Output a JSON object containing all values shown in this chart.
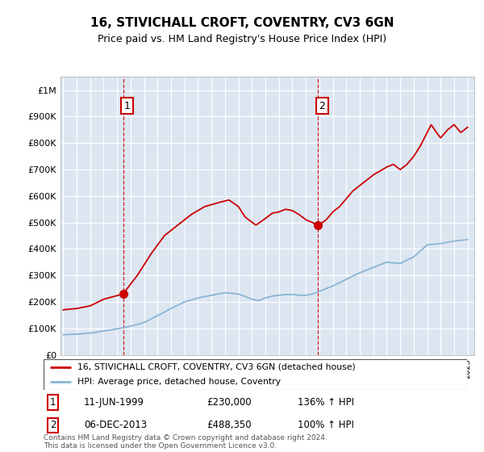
{
  "title": "16, STIVICHALL CROFT, COVENTRY, CV3 6GN",
  "subtitle": "Price paid vs. HM Land Registry's House Price Index (HPI)",
  "ylim": [
    0,
    1050000
  ],
  "xlim_start": 1994.8,
  "xlim_end": 2025.5,
  "background_color": "#dce6f1",
  "grid_color": "#ffffff",
  "sale1_date": 1999.44,
  "sale1_price": 230000,
  "sale2_date": 2013.92,
  "sale2_price": 488350,
  "red_line_color": "#cc0000",
  "blue_line_color": "#8ab4d4",
  "legend_label1": "16, STIVICHALL CROFT, COVENTRY, CV3 6GN (detached house)",
  "legend_label2": "HPI: Average price, detached house, Coventry",
  "sale1_label": "1",
  "sale1_text": "11-JUN-1999",
  "sale1_amount": "£230,000",
  "sale1_hpi": "136% ↑ HPI",
  "sale2_label": "2",
  "sale2_text": "06-DEC-2013",
  "sale2_amount": "£488,350",
  "sale2_hpi": "100% ↑ HPI",
  "footer": "Contains HM Land Registry data © Crown copyright and database right 2024.\nThis data is licensed under the Open Government Licence v3.0.",
  "yticks": [
    0,
    100000,
    200000,
    300000,
    400000,
    500000,
    600000,
    700000,
    800000,
    900000,
    1000000
  ],
  "ytick_labels": [
    "£0",
    "£100K",
    "£200K",
    "£300K",
    "£400K",
    "£500K",
    "£600K",
    "£700K",
    "£800K",
    "£900K",
    "£1M"
  ],
  "red_key_x": [
    1995.0,
    1996.0,
    1997.0,
    1998.0,
    1999.44,
    2000.5,
    2001.5,
    2002.5,
    2003.5,
    2004.5,
    2005.5,
    2006.5,
    2007.3,
    2008.0,
    2008.5,
    2009.3,
    2010.0,
    2010.5,
    2011.0,
    2011.5,
    2012.0,
    2012.5,
    2013.0,
    2013.5,
    2013.92,
    2014.5,
    2015.0,
    2015.5,
    2016.0,
    2016.5,
    2017.0,
    2017.5,
    2018.0,
    2018.5,
    2019.0,
    2019.5,
    2020.0,
    2020.5,
    2021.0,
    2021.5,
    2022.0,
    2022.3,
    2022.7,
    2023.0,
    2023.5,
    2024.0,
    2024.5,
    2025.0
  ],
  "red_key_y": [
    170000,
    175000,
    185000,
    210000,
    230000,
    300000,
    380000,
    450000,
    490000,
    530000,
    560000,
    575000,
    585000,
    560000,
    520000,
    490000,
    515000,
    535000,
    540000,
    550000,
    545000,
    530000,
    510000,
    500000,
    488350,
    510000,
    540000,
    560000,
    590000,
    620000,
    640000,
    660000,
    680000,
    695000,
    710000,
    720000,
    700000,
    720000,
    750000,
    790000,
    840000,
    870000,
    840000,
    820000,
    850000,
    870000,
    840000,
    860000
  ],
  "blue_key_x": [
    1995.0,
    1996.0,
    1997.0,
    1998.0,
    1999.0,
    2000.0,
    2001.0,
    2002.0,
    2003.0,
    2004.0,
    2005.0,
    2006.0,
    2007.0,
    2008.0,
    2009.0,
    2009.5,
    2010.0,
    2010.5,
    2011.0,
    2011.5,
    2012.0,
    2012.5,
    2013.0,
    2013.5,
    2014.0,
    2015.0,
    2016.0,
    2017.0,
    2018.0,
    2019.0,
    2020.0,
    2021.0,
    2022.0,
    2023.0,
    2024.0,
    2025.0
  ],
  "blue_key_y": [
    76000,
    78000,
    82000,
    90000,
    98000,
    108000,
    122000,
    148000,
    175000,
    200000,
    215000,
    225000,
    235000,
    230000,
    210000,
    205000,
    215000,
    222000,
    225000,
    228000,
    228000,
    225000,
    225000,
    230000,
    240000,
    260000,
    285000,
    310000,
    330000,
    350000,
    345000,
    370000,
    415000,
    420000,
    430000,
    435000
  ]
}
